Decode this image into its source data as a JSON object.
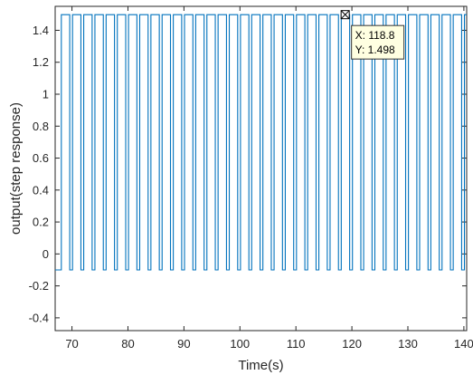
{
  "chart_data": {
    "type": "line",
    "xlabel": "Time(s)",
    "ylabel": "output(step response)",
    "xlim": [
      67,
      140.5
    ],
    "ylim": [
      -0.48,
      1.55
    ],
    "xticks": [
      70,
      80,
      90,
      100,
      110,
      120,
      130,
      140
    ],
    "yticks": [
      -0.4,
      -0.2,
      0,
      0.2,
      0.4,
      0.6,
      0.8,
      1,
      1.2,
      1.4
    ],
    "xtick_labels": [
      "70",
      "80",
      "90",
      "100",
      "110",
      "120",
      "130",
      "140"
    ],
    "ytick_labels": [
      "-0.4",
      "-0.2",
      "0",
      "0.2",
      "0.4",
      "0.6",
      "0.8",
      "1",
      "1.2",
      "1.4"
    ],
    "grid": false,
    "series": [
      {
        "color": "#0072bd",
        "waveform": "square",
        "high": 1.498,
        "low": -0.1,
        "period": 2,
        "high_duration": 1.5,
        "first_rise": 68.1,
        "x_start": 67,
        "x_end": 140.5
      }
    ],
    "datatip": {
      "x": 118.8,
      "y": 1.498,
      "x_label": "X: 118.8",
      "y_label": "Y: 1.498"
    }
  },
  "colors": {
    "line": "#0072bd",
    "axis": "#262626",
    "tip_background": "#ffffe1"
  }
}
